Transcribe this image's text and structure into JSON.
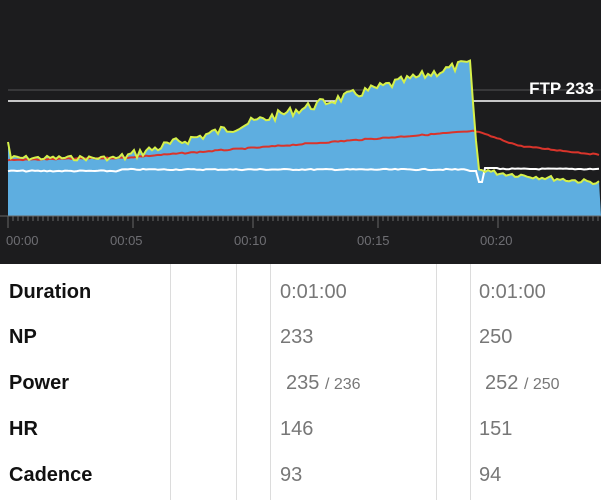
{
  "chart": {
    "ftp_label": "FTP 233",
    "ftp_value": 233,
    "time_labels": [
      "00:00",
      "00:05",
      "00:10",
      "00:15",
      "00:20"
    ],
    "colors": {
      "background": "#1c1c1e",
      "power_fill": "#5eaee0",
      "power_line": "#d6f04a",
      "hr_line": "#d9342b",
      "cadence_line": "#ffffff",
      "ftp_line": "#ffffff"
    }
  },
  "table": {
    "rows": [
      {
        "label": "Duration",
        "col1": "0:01:00",
        "col1_sub": "",
        "col2": "0:01:00",
        "col2_sub": ""
      },
      {
        "label": "NP",
        "col1": "233",
        "col1_sub": "",
        "col2": "250",
        "col2_sub": ""
      },
      {
        "label": "Power",
        "col1": "235",
        "col1_sub": "/ 236",
        "col2": "252",
        "col2_sub": "/ 250"
      },
      {
        "label": "HR",
        "col1": "146",
        "col1_sub": "",
        "col2": "151",
        "col2_sub": ""
      },
      {
        "label": "Cadence",
        "col1": "93",
        "col1_sub": "",
        "col2": "94",
        "col2_sub": ""
      }
    ]
  }
}
